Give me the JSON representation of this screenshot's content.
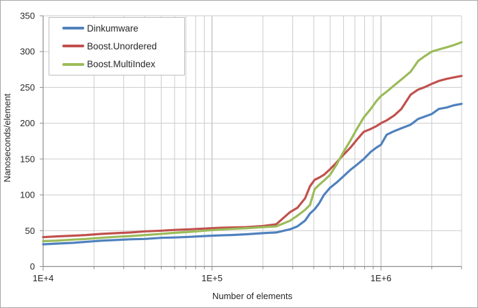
{
  "chart_data": {
    "type": "line",
    "title": "",
    "xlabel": "Number of elements",
    "ylabel": "Nanoseconds/element",
    "x_scale": "log",
    "xlim": [
      10000,
      3000000
    ],
    "ylim": [
      0,
      350
    ],
    "y_ticks": [
      0,
      50,
      100,
      150,
      200,
      250,
      300,
      350
    ],
    "x_major_ticks": [
      {
        "value": 10000,
        "label": "1E+4"
      },
      {
        "value": 100000,
        "label": "1E+5"
      },
      {
        "value": 1000000,
        "label": "1E+6"
      }
    ],
    "grid": true,
    "legend_position": "top-left",
    "x": [
      10000,
      12000,
      15000,
      18000,
      22000,
      27000,
      33000,
      40000,
      50000,
      60000,
      75000,
      90000,
      110000,
      130000,
      160000,
      200000,
      240000,
      290000,
      320000,
      355000,
      380000,
      405000,
      430000,
      460000,
      500000,
      545000,
      600000,
      660000,
      720000,
      790000,
      870000,
      940000,
      1000000,
      1080000,
      1200000,
      1320000,
      1500000,
      1660000,
      1800000,
      2000000,
      2200000,
      2450000,
      2700000,
      3000000
    ],
    "series": [
      {
        "name": "Dinkumware",
        "color": "#4F81BD",
        "values": [
          31,
          32,
          33,
          34.5,
          36,
          37,
          38,
          38.5,
          40,
          40.5,
          41.5,
          42.5,
          43.5,
          44,
          45,
          46.5,
          47.5,
          52,
          56,
          64,
          74,
          80,
          88,
          100,
          110,
          117,
          126,
          135,
          142,
          150,
          160,
          166,
          170,
          184,
          189,
          193,
          198,
          206,
          209,
          213,
          220,
          222,
          225,
          227
        ]
      },
      {
        "name": "Boost.Unordered",
        "color": "#C0504D",
        "values": [
          41,
          42,
          43,
          44,
          45.5,
          46.5,
          47.5,
          49,
          50,
          51,
          52,
          53,
          54,
          54.5,
          55,
          56.5,
          59,
          76,
          82,
          95,
          112,
          121,
          124,
          128,
          136,
          145,
          156,
          166,
          177,
          188,
          192,
          196,
          200,
          204,
          211,
          220,
          240,
          247,
          250,
          255,
          259,
          262,
          264,
          266
        ]
      },
      {
        "name": "Boost.MultiIndex",
        "color": "#9BBB59",
        "values": [
          35.5,
          36,
          37.5,
          38.5,
          40,
          41.5,
          42.5,
          44,
          45.5,
          47,
          48.5,
          50,
          51.5,
          52.5,
          53.5,
          55,
          56,
          64,
          71,
          79,
          86,
          108,
          114,
          120,
          128,
          142,
          160,
          176,
          192,
          208,
          220,
          231,
          238,
          244,
          253,
          261,
          272,
          287,
          293,
          300,
          303,
          306,
          309,
          313
        ]
      }
    ],
    "colors": {
      "background": "#FFFFFF",
      "grid_minor": "#CBCBCB",
      "grid_major": "#B0B0B0",
      "axis": "#8C8C8C",
      "figure_border": "#A6A6A6",
      "legend_border": "#BDBDBD",
      "text": "#262626"
    }
  }
}
